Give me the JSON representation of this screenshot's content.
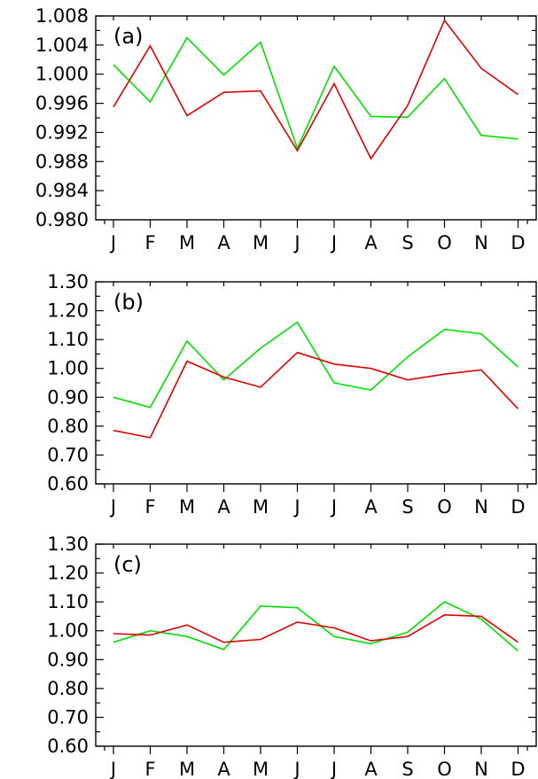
{
  "chart_data": [
    {
      "type": "line",
      "panel_label": "(a)",
      "categories": [
        "J",
        "F",
        "M",
        "A",
        "M",
        "J",
        "J",
        "A",
        "S",
        "O",
        "N",
        "D"
      ],
      "ylim": [
        0.98,
        1.008
      ],
      "yticks": [
        "1.008",
        "1.004",
        "1.000",
        "0.996",
        "0.992",
        "0.988",
        "0.984",
        "0.980"
      ],
      "ytick_values": [
        1.008,
        1.004,
        1.0,
        0.996,
        0.992,
        0.988,
        0.984,
        0.98
      ],
      "grid": false,
      "series": [
        {
          "color": "#00e000",
          "values": [
            1.0013,
            0.9962,
            1.005,
            0.9999,
            1.0044,
            0.9898,
            1.0011,
            0.9942,
            0.9941,
            0.9994,
            0.9916,
            0.9911
          ]
        },
        {
          "color": "#e00000",
          "values": [
            0.9955,
            1.0039,
            0.9943,
            0.9975,
            0.9977,
            0.9895,
            0.9987,
            0.9884,
            0.9957,
            1.0074,
            1.0008,
            0.9972
          ]
        }
      ]
    },
    {
      "type": "line",
      "panel_label": "(b)",
      "categories": [
        "J",
        "F",
        "M",
        "A",
        "M",
        "J",
        "J",
        "A",
        "S",
        "O",
        "N",
        "D"
      ],
      "ylim": [
        0.6,
        1.3
      ],
      "yticks": [
        "1.30",
        "1.20",
        "1.10",
        "1.00",
        "0.90",
        "0.80",
        "0.70",
        "0.60"
      ],
      "ytick_values": [
        1.3,
        1.2,
        1.1,
        1.0,
        0.9,
        0.8,
        0.7,
        0.6
      ],
      "grid": false,
      "series": [
        {
          "color": "#00e000",
          "values": [
            0.9,
            0.865,
            1.095,
            0.96,
            1.07,
            1.16,
            0.95,
            0.925,
            1.04,
            1.135,
            1.12,
            1.005
          ]
        },
        {
          "color": "#e00000",
          "values": [
            0.785,
            0.76,
            1.025,
            0.97,
            0.935,
            1.055,
            1.015,
            1.0,
            0.96,
            0.98,
            0.995,
            0.86
          ]
        }
      ]
    },
    {
      "type": "line",
      "panel_label": "(c)",
      "categories": [
        "J",
        "F",
        "M",
        "A",
        "M",
        "J",
        "J",
        "A",
        "S",
        "O",
        "N",
        "D"
      ],
      "ylim": [
        0.6,
        1.3
      ],
      "yticks": [
        "1.30",
        "1.20",
        "1.10",
        "1.00",
        "0.90",
        "0.80",
        "0.70",
        "0.60"
      ],
      "ytick_values": [
        1.3,
        1.2,
        1.1,
        1.0,
        0.9,
        0.8,
        0.7,
        0.6
      ],
      "grid": false,
      "series": [
        {
          "color": "#00e000",
          "values": [
            0.96,
            1.0,
            0.98,
            0.935,
            1.085,
            1.08,
            0.98,
            0.955,
            0.995,
            1.1,
            1.04,
            0.93
          ]
        },
        {
          "color": "#e00000",
          "values": [
            0.99,
            0.985,
            1.02,
            0.96,
            0.97,
            1.03,
            1.01,
            0.965,
            0.98,
            1.055,
            1.05,
            0.96
          ]
        }
      ]
    }
  ]
}
